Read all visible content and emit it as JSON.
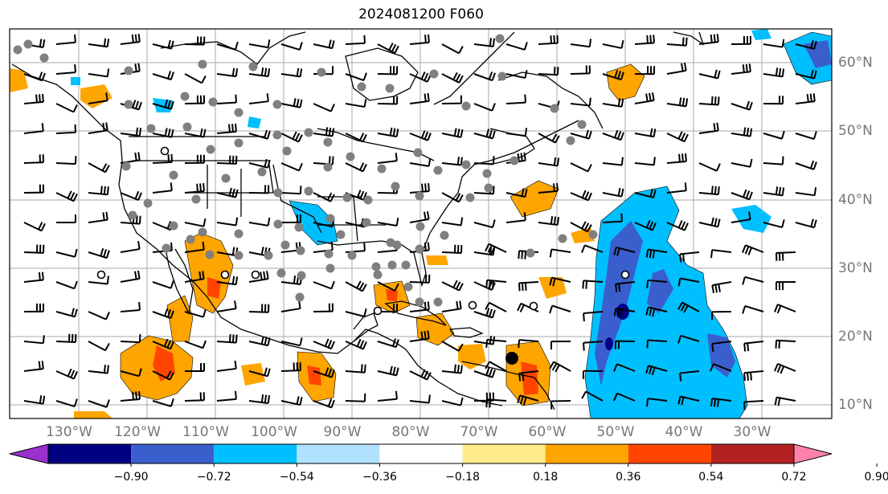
{
  "title": "2024081200 F060",
  "map": {
    "lon_labels": [
      "130°W",
      "120°W",
      "110°W",
      "100°W",
      "90°W",
      "80°W",
      "70°W",
      "60°W",
      "50°W",
      "40°W",
      "30°W"
    ],
    "lat_labels": [
      "60°N",
      "50°N",
      "40°N",
      "30°N",
      "20°N",
      "10°N"
    ],
    "colors": {
      "gridline": "#aaaaaa",
      "coastline": "#000000",
      "label": "#777777",
      "positive": [
        "#fde98c",
        "#ffa500",
        "#ff4500",
        "#b22222"
      ],
      "negative": [
        "#00bfff",
        "#3a5fcd",
        "#00008b"
      ]
    }
  },
  "colorbar": {
    "colors": [
      "#9932cc",
      "#000080",
      "#3a5fcd",
      "#00bfff",
      "#b0e2ff",
      "#ffffff",
      "#ffec8b",
      "#ffa500",
      "#ff4500",
      "#b22222",
      "#ff82ab"
    ],
    "tick_labels": [
      "−0.90",
      "−0.72",
      "−0.54",
      "−0.36",
      "−0.18",
      "0.18",
      "0.36",
      "0.54",
      "0.72",
      "0.90"
    ]
  }
}
